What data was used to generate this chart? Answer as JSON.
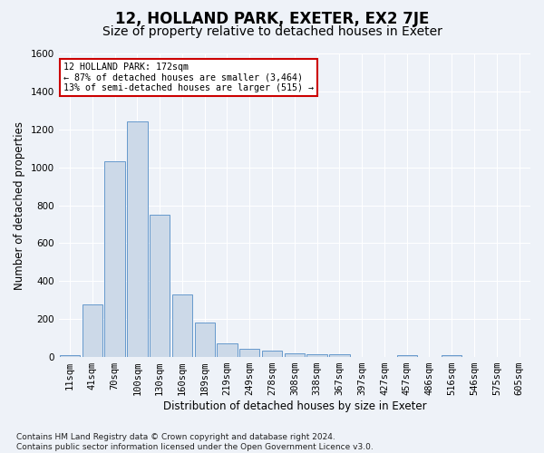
{
  "title": "12, HOLLAND PARK, EXETER, EX2 7JE",
  "subtitle": "Size of property relative to detached houses in Exeter",
  "xlabel": "Distribution of detached houses by size in Exeter",
  "ylabel": "Number of detached properties",
  "categories": [
    "11sqm",
    "41sqm",
    "70sqm",
    "100sqm",
    "130sqm",
    "160sqm",
    "189sqm",
    "219sqm",
    "249sqm",
    "278sqm",
    "308sqm",
    "338sqm",
    "367sqm",
    "397sqm",
    "427sqm",
    "457sqm",
    "486sqm",
    "516sqm",
    "546sqm",
    "575sqm",
    "605sqm"
  ],
  "values": [
    10,
    275,
    1030,
    1240,
    750,
    330,
    180,
    70,
    45,
    35,
    20,
    15,
    15,
    0,
    0,
    10,
    0,
    10,
    0,
    0,
    0
  ],
  "bar_color": "#ccd9e8",
  "bar_edge_color": "#6699cc",
  "annotation_text": "12 HOLLAND PARK: 172sqm\n← 87% of detached houses are smaller (3,464)\n13% of semi-detached houses are larger (515) →",
  "annotation_box_color": "#ffffff",
  "annotation_box_edge": "#cc0000",
  "ylim": [
    0,
    1600
  ],
  "yticks": [
    0,
    200,
    400,
    600,
    800,
    1000,
    1200,
    1400,
    1600
  ],
  "background_color": "#eef2f8",
  "footer": "Contains HM Land Registry data © Crown copyright and database right 2024.\nContains public sector information licensed under the Open Government Licence v3.0.",
  "title_fontsize": 12,
  "subtitle_fontsize": 10,
  "axis_label_fontsize": 8.5,
  "tick_fontsize": 7.5,
  "footer_fontsize": 6.5
}
